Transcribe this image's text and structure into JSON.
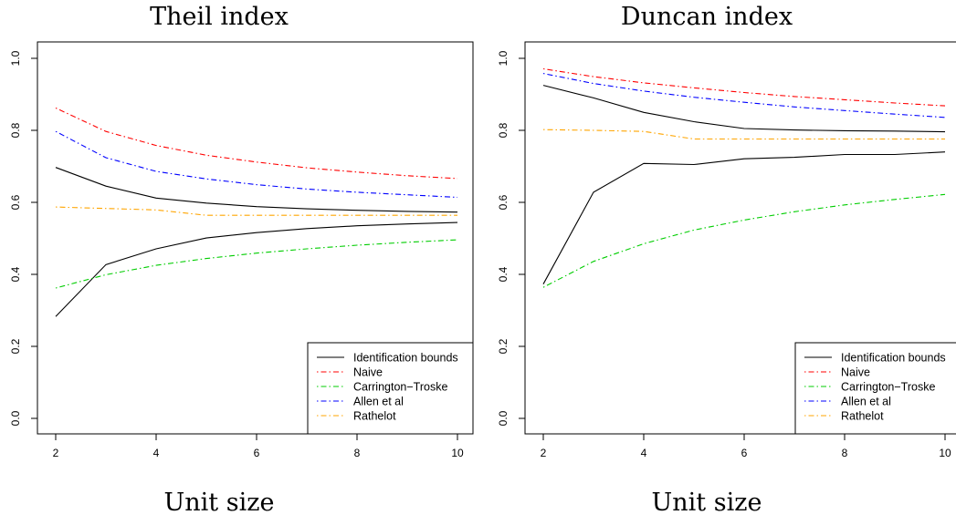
{
  "chart_data": [
    {
      "type": "line",
      "title": "Theil index",
      "xlabel": "Unit size",
      "ylabel": "",
      "xlim": [
        2,
        10
      ],
      "ylim": [
        0,
        1
      ],
      "xticks": [
        2,
        4,
        6,
        8,
        10
      ],
      "yticks": [
        0.0,
        0.2,
        0.4,
        0.6,
        0.8,
        1.0
      ],
      "ytick_labels": [
        "0.0",
        "0.2",
        "0.4",
        "0.6",
        "0.8",
        "1.0"
      ],
      "grid": false,
      "legend_position": "bottom-right",
      "x": [
        2,
        3,
        4,
        5,
        6,
        7,
        8,
        9,
        10
      ],
      "series": [
        {
          "name": "Identification bounds",
          "color": "#000000",
          "dash": "solid",
          "values": [
            0.697,
            0.645,
            0.612,
            0.598,
            0.588,
            0.582,
            0.578,
            0.575,
            0.573
          ],
          "lower_values": [
            0.283,
            0.427,
            0.471,
            0.501,
            0.516,
            0.527,
            0.535,
            0.54,
            0.544
          ]
        },
        {
          "name": "Naive",
          "color": "#ff0000",
          "dash": "dotdash",
          "values": [
            0.862,
            0.797,
            0.758,
            0.731,
            0.712,
            0.696,
            0.684,
            0.674,
            0.666
          ]
        },
        {
          "name": "Carrington−Troske",
          "color": "#00cd00",
          "dash": "dotdash",
          "values": [
            0.362,
            0.399,
            0.425,
            0.444,
            0.459,
            0.471,
            0.481,
            0.489,
            0.496
          ]
        },
        {
          "name": "Allen et al",
          "color": "#0000ff",
          "dash": "dotdash",
          "values": [
            0.797,
            0.724,
            0.686,
            0.665,
            0.649,
            0.637,
            0.628,
            0.621,
            0.614
          ]
        },
        {
          "name": "Rathelot",
          "color": "#ffa500",
          "dash": "dotdash",
          "values": [
            0.587,
            0.583,
            0.579,
            0.564,
            0.564,
            0.564,
            0.564,
            0.564,
            0.564
          ]
        }
      ]
    },
    {
      "type": "line",
      "title": "Duncan index",
      "xlabel": "Unit size",
      "ylabel": "",
      "xlim": [
        2,
        10
      ],
      "ylim": [
        0,
        1
      ],
      "xticks": [
        2,
        4,
        6,
        8,
        10
      ],
      "yticks": [
        0.0,
        0.2,
        0.4,
        0.6,
        0.8,
        1.0
      ],
      "ytick_labels": [
        "0.0",
        "0.2",
        "0.4",
        "0.6",
        "0.8",
        "1.0"
      ],
      "grid": false,
      "legend_position": "bottom-right",
      "x": [
        2,
        3,
        4,
        5,
        6,
        7,
        8,
        9,
        10
      ],
      "series": [
        {
          "name": "Identification bounds",
          "color": "#000000",
          "dash": "solid",
          "values": [
            0.925,
            0.89,
            0.85,
            0.824,
            0.805,
            0.801,
            0.799,
            0.798,
            0.796
          ],
          "lower_values": [
            0.373,
            0.628,
            0.708,
            0.705,
            0.721,
            0.725,
            0.733,
            0.733,
            0.74
          ]
        },
        {
          "name": "Naive",
          "color": "#ff0000",
          "dash": "dotdash",
          "values": [
            0.971,
            0.949,
            0.932,
            0.918,
            0.905,
            0.894,
            0.885,
            0.876,
            0.868
          ]
        },
        {
          "name": "Carrington−Troske",
          "color": "#00cd00",
          "dash": "dotdash",
          "values": [
            0.364,
            0.436,
            0.485,
            0.523,
            0.551,
            0.574,
            0.593,
            0.608,
            0.622
          ]
        },
        {
          "name": "Allen et al",
          "color": "#0000ff",
          "dash": "dotdash",
          "values": [
            0.958,
            0.93,
            0.909,
            0.892,
            0.878,
            0.865,
            0.855,
            0.845,
            0.836
          ]
        },
        {
          "name": "Rathelot",
          "color": "#ffa500",
          "dash": "dotdash",
          "values": [
            0.802,
            0.8,
            0.797,
            0.776,
            0.776,
            0.776,
            0.776,
            0.776,
            0.776
          ]
        }
      ]
    }
  ]
}
